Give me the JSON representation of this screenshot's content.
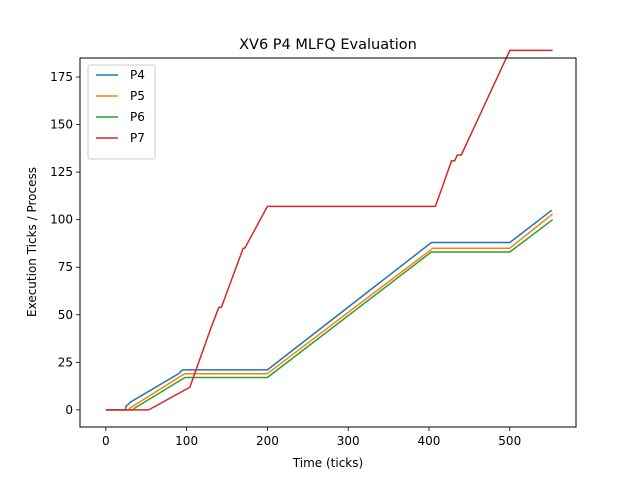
{
  "chart_data": {
    "type": "line",
    "title": "XV6 P4 MLFQ Evaluation",
    "xlabel": "Time (ticks)",
    "ylabel": "Execution Ticks / Process",
    "xlim": [
      -32,
      582
    ],
    "ylim": [
      -9,
      185
    ],
    "xticks": [
      0,
      100,
      200,
      300,
      400,
      500
    ],
    "yticks": [
      0,
      25,
      50,
      75,
      100,
      125,
      150,
      175
    ],
    "grid": false,
    "legend_position": "upper-left",
    "series": [
      {
        "name": "P4",
        "color": "#1f77b4",
        "points": [
          [
            0,
            0
          ],
          [
            24,
            0
          ],
          [
            25,
            2
          ],
          [
            28,
            3
          ],
          [
            30,
            4
          ],
          [
            90,
            19
          ],
          [
            95,
            21
          ],
          [
            200,
            21
          ],
          [
            403,
            88
          ],
          [
            500,
            88
          ],
          [
            552,
            105
          ]
        ]
      },
      {
        "name": "P5",
        "color": "#ff7f0e",
        "points": [
          [
            0,
            0
          ],
          [
            28,
            0
          ],
          [
            30,
            1
          ],
          [
            90,
            17
          ],
          [
            98,
            19
          ],
          [
            200,
            19
          ],
          [
            405,
            85
          ],
          [
            500,
            85
          ],
          [
            553,
            103
          ]
        ]
      },
      {
        "name": "P6",
        "color": "#2ca02c",
        "points": [
          [
            0,
            0
          ],
          [
            34,
            0
          ],
          [
            36,
            1
          ],
          [
            90,
            15
          ],
          [
            98,
            17
          ],
          [
            200,
            17
          ],
          [
            403,
            83
          ],
          [
            500,
            83
          ],
          [
            553,
            100
          ]
        ]
      },
      {
        "name": "P7",
        "color": "#d62728",
        "points": [
          [
            0,
            0
          ],
          [
            53,
            0
          ],
          [
            100,
            11
          ],
          [
            104,
            12
          ],
          [
            130,
            43
          ],
          [
            140,
            54
          ],
          [
            143,
            54
          ],
          [
            170,
            85
          ],
          [
            172,
            85
          ],
          [
            200,
            107
          ],
          [
            408,
            107
          ],
          [
            428,
            131
          ],
          [
            432,
            131
          ],
          [
            435,
            134
          ],
          [
            440,
            134
          ],
          [
            500,
            189
          ],
          [
            553,
            189
          ]
        ]
      }
    ]
  }
}
